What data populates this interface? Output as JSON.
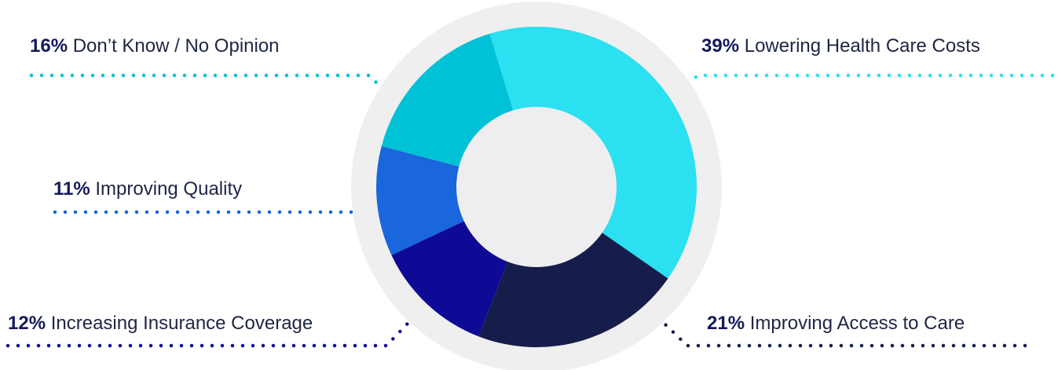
{
  "chart_data": {
    "type": "pie",
    "variant": "donut",
    "slices": [
      {
        "percent_label": "39%",
        "value": 39,
        "label": "Lowering Health Care Costs",
        "color": "#2be0f0"
      },
      {
        "percent_label": "21%",
        "value": 21,
        "label": "Improving Access to Care",
        "color": "#161d4a"
      },
      {
        "percent_label": "12%",
        "value": 12,
        "label": "Increasing Insurance Coverage",
        "color": "#0e0a96"
      },
      {
        "percent_label": "11%",
        "value": 11,
        "label": "Improving Quality",
        "color": "#1a66dc"
      },
      {
        "percent_label": "16%",
        "value": 16,
        "label": "Don’t Know / No Opinion",
        "color": "#00c2d6"
      }
    ],
    "ring_color": "#efefef",
    "hole_color": "#eeeef0"
  }
}
